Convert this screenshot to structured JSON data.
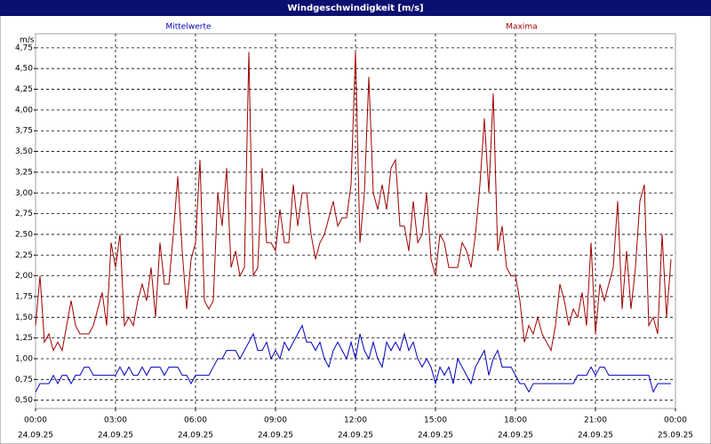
{
  "chart_data": {
    "type": "line",
    "title": "Windgeschwindigkeit [m/s]",
    "y_label": "m/s",
    "grid": true,
    "xlim": [
      0,
      1440
    ],
    "ylim": [
      0.4,
      4.92
    ],
    "xticks": [
      {
        "value": 0,
        "label": "00:00"
      },
      {
        "value": 180,
        "label": "03:00"
      },
      {
        "value": 360,
        "label": "06:00"
      },
      {
        "value": 540,
        "label": "09:00"
      },
      {
        "value": 720,
        "label": "12:00"
      },
      {
        "value": 900,
        "label": "15:00"
      },
      {
        "value": 1080,
        "label": "18:00"
      },
      {
        "value": 1260,
        "label": "21:00"
      },
      {
        "value": 1440,
        "label": "00:00"
      }
    ],
    "xtick_dates": [
      "24.09.25",
      "24.09.25",
      "24.09.25",
      "24.09.25",
      "24.09.25",
      "24.09.25",
      "24.09.25",
      "24.09.25",
      "25.09.25"
    ],
    "yticks": [
      {
        "value": 0.5,
        "label": "0,50"
      },
      {
        "value": 0.75,
        "label": "0,75"
      },
      {
        "value": 1,
        "label": "1,00"
      },
      {
        "value": 1.25,
        "label": "1,25"
      },
      {
        "value": 1.5,
        "label": "1,50"
      },
      {
        "value": 1.75,
        "label": "1,75"
      },
      {
        "value": 2,
        "label": "2,00"
      },
      {
        "value": 2.25,
        "label": "2,25"
      },
      {
        "value": 2.5,
        "label": "2,50"
      },
      {
        "value": 2.75,
        "label": "2,75"
      },
      {
        "value": 3,
        "label": "3,00"
      },
      {
        "value": 3.25,
        "label": "3,25"
      },
      {
        "value": 3.5,
        "label": "3,50"
      },
      {
        "value": 3.75,
        "label": "3,75"
      },
      {
        "value": 4,
        "label": "4,00"
      },
      {
        "value": 4.25,
        "label": "4,25"
      },
      {
        "value": 4.5,
        "label": "4,50"
      },
      {
        "value": 4.75,
        "label": "4,75"
      }
    ],
    "x": [
      0,
      10,
      20,
      30,
      40,
      50,
      60,
      70,
      80,
      90,
      100,
      110,
      120,
      130,
      140,
      150,
      160,
      170,
      180,
      190,
      200,
      210,
      220,
      230,
      240,
      250,
      260,
      270,
      280,
      290,
      300,
      310,
      320,
      330,
      340,
      350,
      360,
      370,
      380,
      390,
      400,
      410,
      420,
      430,
      440,
      450,
      460,
      470,
      480,
      490,
      500,
      510,
      520,
      530,
      540,
      550,
      560,
      570,
      580,
      590,
      600,
      610,
      620,
      630,
      640,
      650,
      660,
      670,
      680,
      690,
      700,
      710,
      720,
      730,
      740,
      750,
      760,
      770,
      780,
      790,
      800,
      810,
      820,
      830,
      840,
      850,
      860,
      870,
      880,
      890,
      900,
      910,
      920,
      930,
      940,
      950,
      960,
      970,
      980,
      990,
      1000,
      1010,
      1020,
      1030,
      1040,
      1050,
      1060,
      1070,
      1080,
      1090,
      1100,
      1110,
      1120,
      1130,
      1140,
      1150,
      1160,
      1170,
      1180,
      1190,
      1200,
      1210,
      1220,
      1230,
      1240,
      1250,
      1260,
      1270,
      1280,
      1290,
      1300,
      1310,
      1320,
      1330,
      1340,
      1350,
      1360,
      1370,
      1380,
      1390,
      1400,
      1410,
      1420,
      1430
    ],
    "series": [
      {
        "name": "Mittelwerte",
        "color": "#0000c0",
        "values": [
          0.6,
          0.7,
          0.7,
          0.7,
          0.8,
          0.7,
          0.8,
          0.8,
          0.7,
          0.8,
          0.8,
          0.9,
          0.9,
          0.8,
          0.8,
          0.8,
          0.8,
          0.8,
          0.8,
          0.9,
          0.8,
          0.9,
          0.8,
          0.8,
          0.9,
          0.8,
          0.9,
          0.9,
          0.9,
          0.8,
          0.9,
          0.9,
          0.9,
          0.8,
          0.8,
          0.7,
          0.8,
          0.8,
          0.8,
          0.8,
          0.9,
          1.0,
          1.0,
          1.1,
          1.1,
          1.1,
          1.0,
          1.1,
          1.2,
          1.3,
          1.1,
          1.1,
          1.2,
          1.0,
          1.1,
          1.0,
          1.2,
          1.1,
          1.2,
          1.3,
          1.4,
          1.2,
          1.2,
          1.1,
          1.2,
          1.0,
          0.9,
          1.1,
          1.2,
          1.1,
          1.0,
          1.2,
          1.0,
          1.3,
          1.1,
          1.0,
          1.2,
          1.0,
          0.9,
          1.2,
          1.1,
          1.2,
          1.1,
          1.3,
          1.1,
          1.2,
          1.0,
          0.9,
          1.0,
          0.9,
          0.7,
          0.9,
          0.8,
          0.9,
          0.7,
          1.0,
          0.9,
          0.8,
          0.7,
          0.9,
          1.0,
          1.1,
          0.8,
          1.0,
          1.1,
          0.9,
          0.9,
          0.9,
          0.8,
          0.7,
          0.7,
          0.6,
          0.7,
          0.7,
          0.7,
          0.7,
          0.7,
          0.7,
          0.7,
          0.7,
          0.7,
          0.7,
          0.8,
          0.8,
          0.8,
          0.9,
          0.8,
          0.9,
          0.9,
          0.8,
          0.8,
          0.8,
          0.8,
          0.8,
          0.8,
          0.8,
          0.8,
          0.8,
          0.8,
          0.6,
          0.7,
          0.7,
          0.7,
          0.7
        ]
      },
      {
        "name": "Maxima",
        "color": "#a00000",
        "values": [
          1.4,
          2.0,
          1.2,
          1.3,
          1.1,
          1.2,
          1.1,
          1.4,
          1.7,
          1.4,
          1.3,
          1.3,
          1.3,
          1.4,
          1.6,
          1.8,
          1.4,
          2.4,
          2.1,
          2.5,
          1.4,
          1.5,
          1.4,
          1.7,
          1.9,
          1.7,
          2.1,
          1.5,
          2.4,
          1.9,
          1.9,
          2.5,
          3.2,
          2.3,
          1.6,
          2.2,
          2.4,
          3.4,
          1.7,
          1.6,
          1.7,
          3.0,
          2.6,
          3.3,
          2.1,
          2.3,
          2.0,
          2.1,
          4.7,
          2.0,
          2.1,
          3.3,
          2.4,
          2.4,
          2.3,
          2.8,
          2.4,
          2.4,
          3.1,
          2.6,
          3.0,
          3.0,
          2.5,
          2.2,
          2.4,
          2.5,
          2.7,
          2.9,
          2.6,
          2.7,
          2.7,
          3.1,
          4.7,
          2.4,
          3.0,
          4.4,
          3.0,
          2.8,
          3.1,
          2.8,
          3.3,
          3.4,
          2.6,
          2.6,
          2.3,
          2.9,
          2.4,
          2.5,
          3.0,
          2.2,
          2.0,
          2.5,
          2.4,
          2.1,
          2.1,
          2.1,
          2.4,
          2.3,
          2.1,
          2.5,
          3.1,
          3.9,
          3.0,
          4.2,
          2.3,
          2.6,
          2.1,
          2.0,
          2.0,
          1.7,
          1.2,
          1.4,
          1.3,
          1.5,
          1.3,
          1.2,
          1.1,
          1.4,
          1.9,
          1.7,
          1.4,
          1.6,
          1.5,
          1.8,
          1.4,
          2.4,
          1.3,
          1.9,
          1.7,
          1.9,
          2.1,
          2.9,
          1.6,
          2.3,
          1.6,
          2.1,
          2.9,
          3.1,
          1.4,
          1.5,
          1.3,
          2.5,
          1.5,
          2.2
        ]
      }
    ]
  }
}
